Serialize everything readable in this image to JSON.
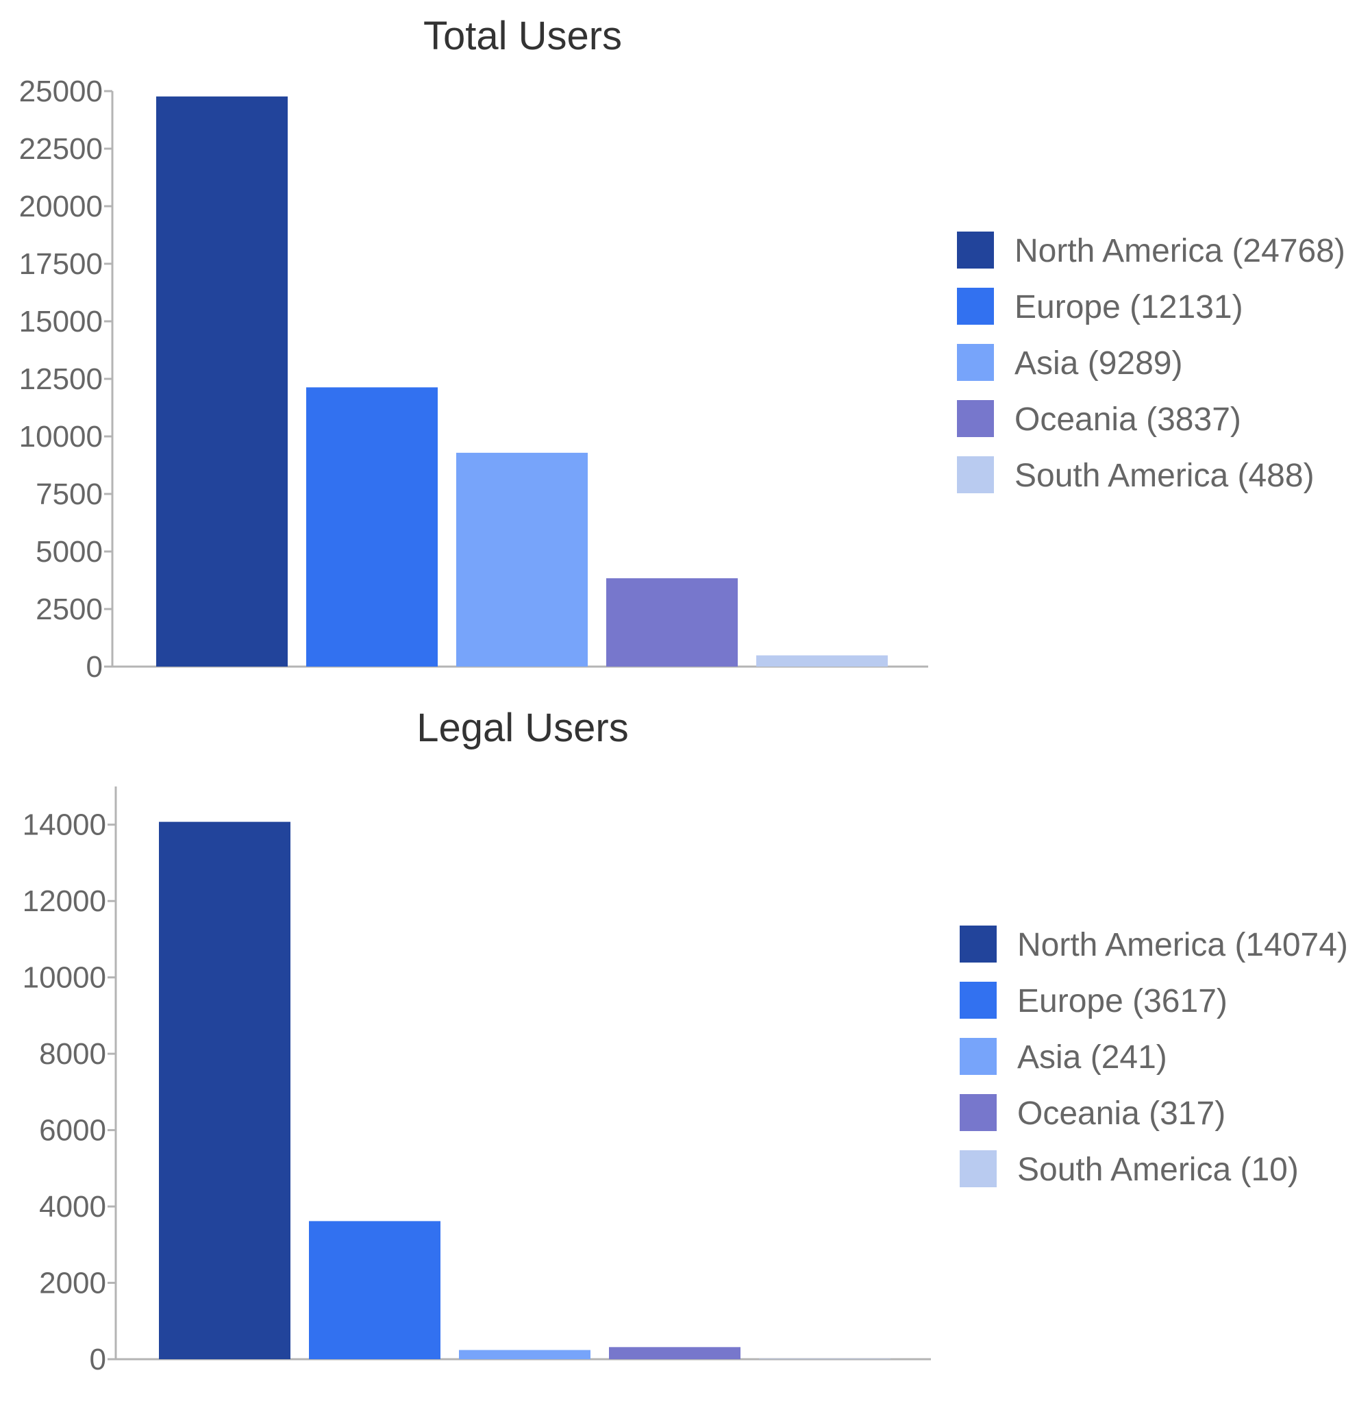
{
  "chart_data": [
    {
      "type": "bar",
      "title": "Total Users",
      "xlabel": "",
      "ylabel": "",
      "categories": [
        "North America",
        "Europe",
        "Asia",
        "Oceania",
        "South America"
      ],
      "values": [
        24768,
        12131,
        9289,
        3837,
        488
      ],
      "colors": [
        "#22449b",
        "#3271f0",
        "#77a4fa",
        "#7777cc",
        "#b9cbf0"
      ],
      "legend": [
        "North America (24768)",
        "Europe (12131)",
        "Asia (9289)",
        "Oceania (3837)",
        "South America (488)"
      ],
      "legend_position": "right",
      "ylim": [
        0,
        25000
      ],
      "yticks": [
        0,
        2500,
        5000,
        7500,
        10000,
        12500,
        15000,
        17500,
        20000,
        22500,
        25000
      ],
      "ytick_labels": [
        "0",
        "2500",
        "5000",
        "7500",
        "10000",
        "12500",
        "15000",
        "17500",
        "20000",
        "22500",
        "25000"
      ],
      "grid": false
    },
    {
      "type": "bar",
      "title": "Legal Users",
      "xlabel": "",
      "ylabel": "",
      "categories": [
        "North America",
        "Europe",
        "Asia",
        "Oceania",
        "South America"
      ],
      "values": [
        14074,
        3617,
        241,
        317,
        10
      ],
      "colors": [
        "#22449b",
        "#3271f0",
        "#77a4fa",
        "#7777cc",
        "#b9cbf0"
      ],
      "legend": [
        "North America (14074)",
        "Europe (3617)",
        "Asia (241)",
        "Oceania (317)",
        "South America (10)"
      ],
      "legend_position": "right",
      "ylim": [
        0,
        15000
      ],
      "yticks": [
        0,
        2000,
        4000,
        6000,
        8000,
        10000,
        12000,
        14000
      ],
      "ytick_labels": [
        "0",
        "2000",
        "4000",
        "6000",
        "8000",
        "10000",
        "12000",
        "14000"
      ],
      "grid": false
    }
  ]
}
